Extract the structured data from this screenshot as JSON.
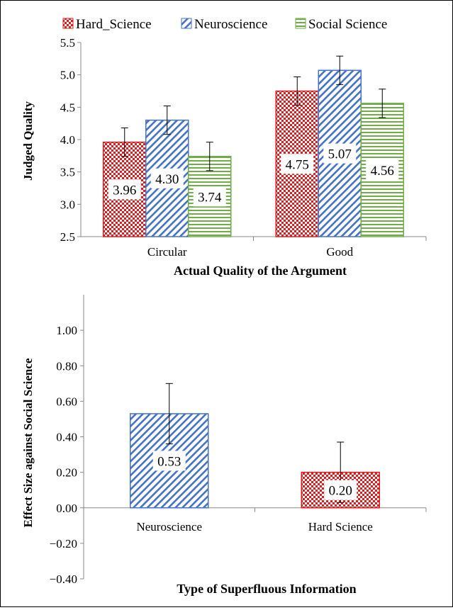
{
  "colors": {
    "Hard_Science": "#e31a1c",
    "Neuroscience": "#4472c4",
    "Social Science": "#70ad47"
  },
  "chart_data": [
    {
      "type": "bar",
      "categories": [
        "Circular",
        "Good"
      ],
      "series": [
        {
          "name": "Hard_Science",
          "pattern": "checker",
          "values": [
            3.96,
            4.75
          ],
          "errors": [
            0.22,
            0.22
          ],
          "labels": [
            "3.96",
            "4.75"
          ]
        },
        {
          "name": "Neuroscience",
          "pattern": "diagonal",
          "values": [
            4.3,
            5.07
          ],
          "errors": [
            0.22,
            0.22
          ],
          "labels": [
            "4.30",
            "5.07"
          ]
        },
        {
          "name": "Social Science",
          "pattern": "horizontal",
          "values": [
            3.74,
            4.56
          ],
          "errors": [
            0.22,
            0.22
          ],
          "labels": [
            "3.74",
            "4.56"
          ]
        }
      ],
      "xlabel": "Actual Quality of the Argument",
      "ylabel": "Judged Quality",
      "ylim": [
        2.5,
        5.5
      ],
      "yticks": [
        "2.5",
        "3.0",
        "3.5",
        "4.0",
        "4.5",
        "5.0",
        "5.5"
      ],
      "legend": "top",
      "grid": false
    },
    {
      "type": "bar",
      "categories": [
        "Neuroscience",
        "Hard Science"
      ],
      "series": [
        {
          "name": "",
          "patterns": [
            "diagonal",
            "checker"
          ],
          "colors": [
            "Neuroscience",
            "Hard_Science"
          ],
          "values": [
            0.53,
            0.2
          ],
          "errors": [
            0.17,
            0.17
          ],
          "labels": [
            "0.53",
            "0.20"
          ]
        }
      ],
      "xlabel": "Type of Superfluous Information",
      "ylabel": "Effect Size against Social Science",
      "ylim": [
        -0.4,
        1.2
      ],
      "yticks": [
        "−0.40",
        "−0.20",
        "0.00",
        "0.20",
        "0.40",
        "0.60",
        "0.80",
        "1.00"
      ],
      "grid": false
    }
  ]
}
